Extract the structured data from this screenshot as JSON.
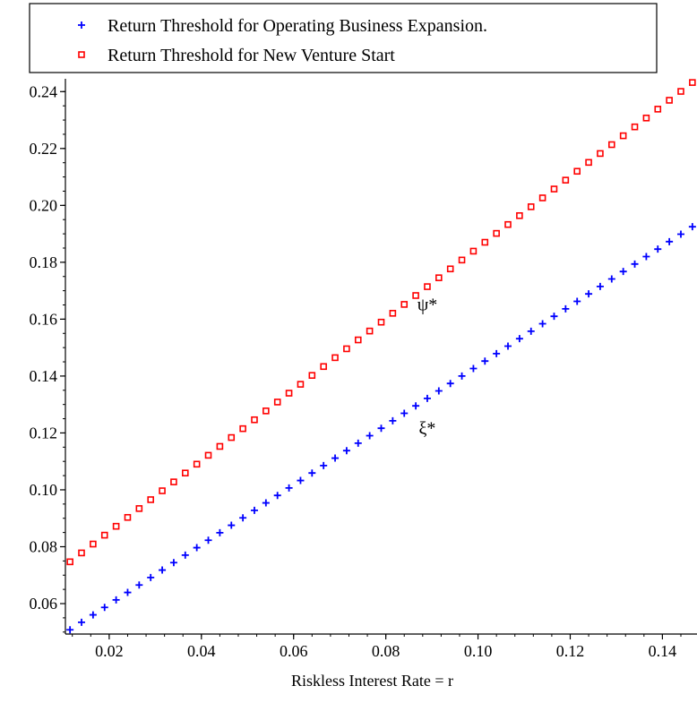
{
  "chart_data": {
    "type": "scatter",
    "title": "",
    "xlabel": "Riskless Interest Rate = r",
    "ylabel": "",
    "xlim": [
      0.0105,
      0.1475
    ],
    "ylim": [
      0.0493,
      0.2445
    ],
    "x_ticks": [
      0.02,
      0.04,
      0.06,
      0.08,
      0.1,
      0.12,
      0.14
    ],
    "x_tick_labels": [
      "0.02",
      "0.04",
      "0.06",
      "0.08",
      "0.10",
      "0.12",
      "0.14"
    ],
    "y_ticks": [
      0.06,
      0.08,
      0.1,
      0.12,
      0.14,
      0.16,
      0.18,
      0.2,
      0.22,
      0.24
    ],
    "y_tick_labels": [
      "0.06",
      "0.08",
      "0.10",
      "0.12",
      "0.14",
      "0.16",
      "0.18",
      "0.20",
      "0.22",
      "0.24"
    ],
    "grid": false,
    "legend_position": "top",
    "series": [
      {
        "name": "Return Threshold for Operating Business Expansion.",
        "marker": "plus",
        "color": "#0000ff",
        "x_start": 0.0115,
        "x_step": 0.0025,
        "count": 55,
        "y_at_start": 0.0508,
        "y_at_end": 0.1925
      },
      {
        "name": "Return Threshold for New Venture Start",
        "marker": "square",
        "color": "#ff0000",
        "x_start": 0.0115,
        "x_step": 0.0025,
        "count": 55,
        "y_at_start": 0.0747,
        "y_at_end": 0.2432
      }
    ],
    "annotations": [
      {
        "text": "ψ*",
        "x": 0.089,
        "y": 0.165
      },
      {
        "text": "ξ*",
        "x": 0.089,
        "y": 0.1215
      }
    ]
  }
}
